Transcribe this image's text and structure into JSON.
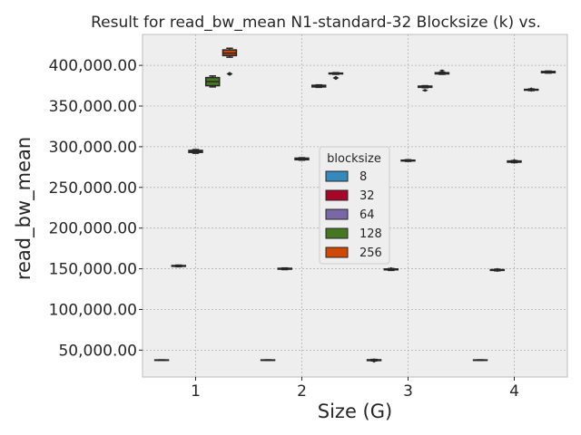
{
  "chart_data": {
    "type": "box",
    "title": "Result for read_bw_mean N1-standard-32 Blocksize (k) vs.",
    "xlabel": "Size (G)",
    "ylabel": "read_bw_mean",
    "categories": [
      "1",
      "2",
      "3",
      "4"
    ],
    "ylim": [
      17000,
      438000
    ],
    "yticks": [
      50000,
      100000,
      150000,
      200000,
      250000,
      300000,
      350000,
      400000
    ],
    "ytick_labels": [
      "50,000.00",
      "100,000.00",
      "150,000.00",
      "200,000.00",
      "250,000.00",
      "300,000.00",
      "350,000.00",
      "400,000.00"
    ],
    "grid": true,
    "legend": {
      "title": "blocksize",
      "position": "center"
    },
    "series": [
      {
        "name": "8",
        "color": "#348ABD",
        "boxes": [
          {
            "min": 37600,
            "q1": 37600,
            "median": 37800,
            "q3": 38000,
            "max": 38100,
            "outliers": []
          },
          {
            "min": 37600,
            "q1": 37600,
            "median": 37800,
            "q3": 38000,
            "max": 38100,
            "outliers": []
          },
          {
            "min": 36800,
            "q1": 37200,
            "median": 37700,
            "q3": 38200,
            "max": 38600,
            "outliers": [
              34500,
              40000
            ]
          },
          {
            "min": 37600,
            "q1": 37600,
            "median": 37800,
            "q3": 38000,
            "max": 38100,
            "outliers": []
          }
        ]
      },
      {
        "name": "32",
        "color": "#A60628",
        "boxes": [
          {
            "min": 152500,
            "q1": 153000,
            "median": 153500,
            "q3": 154000,
            "max": 154500,
            "outliers": []
          },
          {
            "min": 149000,
            "q1": 149500,
            "median": 150000,
            "q3": 150600,
            "max": 151000,
            "outliers": []
          },
          {
            "min": 148000,
            "q1": 148700,
            "median": 149200,
            "q3": 149800,
            "max": 150300,
            "outliers": [
              147000,
              152000
            ]
          },
          {
            "min": 147500,
            "q1": 148000,
            "median": 148500,
            "q3": 149000,
            "max": 149500,
            "outliers": [
              146000,
              151000
            ]
          }
        ]
      },
      {
        "name": "64",
        "color": "#7A68A6",
        "boxes": [
          {
            "min": 292000,
            "q1": 293000,
            "median": 294300,
            "q3": 295500,
            "max": 296500,
            "outliers": []
          },
          {
            "min": 283500,
            "q1": 284000,
            "median": 285000,
            "q3": 286000,
            "max": 286500,
            "outliers": []
          },
          {
            "min": 282000,
            "q1": 282500,
            "median": 283000,
            "q3": 283500,
            "max": 284000,
            "outliers": []
          },
          {
            "min": 280500,
            "q1": 281000,
            "median": 281800,
            "q3": 282500,
            "max": 283000,
            "outliers": [
              279000,
              285000
            ]
          }
        ]
      },
      {
        "name": "128",
        "color": "#467821",
        "boxes": [
          {
            "min": 373500,
            "q1": 375000,
            "median": 380000,
            "q3": 385000,
            "max": 387000,
            "outliers": []
          },
          {
            "min": 373000,
            "q1": 373500,
            "median": 374500,
            "q3": 375500,
            "max": 376000,
            "outliers": []
          },
          {
            "min": 372500,
            "q1": 373000,
            "median": 373800,
            "q3": 374500,
            "max": 375000,
            "outliers": [
              367500,
              371000
            ]
          },
          {
            "min": 369000,
            "q1": 369500,
            "median": 370000,
            "q3": 370500,
            "max": 371000,
            "outliers": [
              367500,
              373000
            ]
          }
        ]
      },
      {
        "name": "256",
        "color": "#CF4A00",
        "boxes": [
          {
            "min": 410000,
            "q1": 412000,
            "median": 415000,
            "q3": 419000,
            "max": 421000,
            "outliers": [
              387000,
              392000
            ]
          },
          {
            "min": 389000,
            "q1": 389500,
            "median": 390000,
            "q3": 390500,
            "max": 391000,
            "outliers": [
              382000,
              387000
            ]
          },
          {
            "min": 389000,
            "q1": 389500,
            "median": 390300,
            "q3": 391000,
            "max": 391500,
            "outliers": [
              392000,
              395000
            ]
          },
          {
            "min": 390500,
            "q1": 391000,
            "median": 391800,
            "q3": 392500,
            "max": 393000,
            "outliers": []
          }
        ]
      }
    ]
  }
}
